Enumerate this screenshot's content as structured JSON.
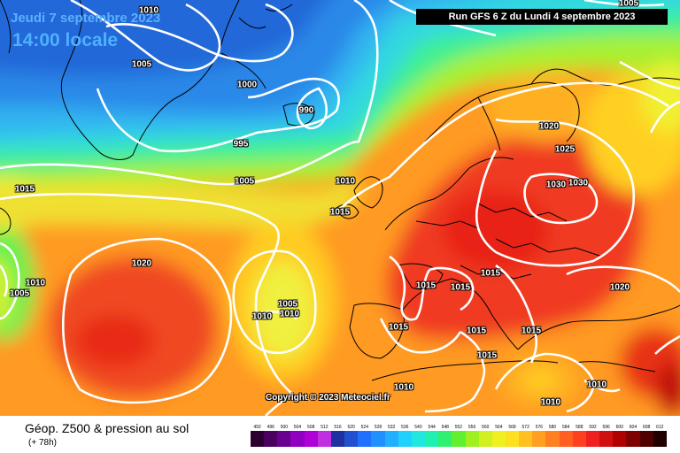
{
  "header": {
    "date_text": "Jeudi 7 septembre 2023",
    "time_text": "14:00 locale",
    "run_text": "Run GFS 6 Z du Lundi 4 septembre 2023"
  },
  "footer": {
    "title": "Géop. Z500 & pression au sol",
    "subtitle": "(+ 78h)",
    "copyright": "Copyright © 2023 Meteociel.fr"
  },
  "isobar_labels": [
    "1010",
    "1005",
    "1000",
    "990",
    "995",
    "1005",
    "1010",
    "1015",
    "1015",
    "1020",
    "1005",
    "1010",
    "1005",
    "1010",
    "1010",
    "1020",
    "1025",
    "1030",
    "1030",
    "1015",
    "1015",
    "1015",
    "1015",
    "1015",
    "1015",
    "1015",
    "1020",
    "1010",
    "1010",
    "1010",
    "1005"
  ],
  "scale": {
    "labels": [
      "492",
      "496",
      "500",
      "504",
      "508",
      "512",
      "516",
      "520",
      "524",
      "528",
      "532",
      "536",
      "540",
      "544",
      "548",
      "552",
      "556",
      "560",
      "564",
      "568",
      "572",
      "576",
      "580",
      "584",
      "588",
      "592",
      "596",
      "600",
      "604",
      "608",
      "612"
    ],
    "colors": [
      "#2b0030",
      "#4a0060",
      "#6a0090",
      "#9000c0",
      "#b000d8",
      "#c030e0",
      "#2030a0",
      "#2050d0",
      "#2070ff",
      "#2090ff",
      "#20b0ff",
      "#20d0ff",
      "#20e8e0",
      "#20f0b0",
      "#30f070",
      "#60f030",
      "#a0f020",
      "#d0f020",
      "#f0f020",
      "#ffe020",
      "#ffc020",
      "#ffa020",
      "#ff8020",
      "#ff6020",
      "#ff4020",
      "#f02020",
      "#d01010",
      "#b00000",
      "#800000",
      "#500000",
      "#200000"
    ]
  },
  "colors": {
    "blue_low": "#2a84e8",
    "green": "#3cf080",
    "yellow": "#f0f030",
    "orange": "#ff9520",
    "red": "#f03820",
    "isobar": "#ffffff",
    "coastline": "#000000"
  }
}
